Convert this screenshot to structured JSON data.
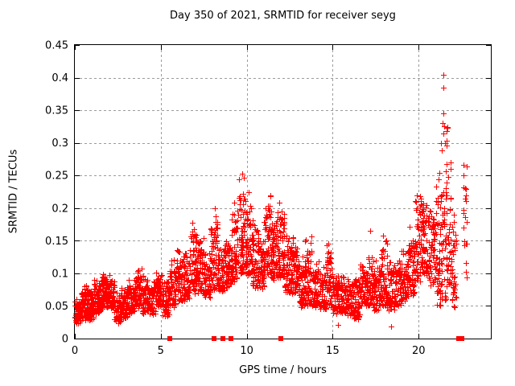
{
  "page": {
    "title": "Day 350 of 2021, SRMTID for receiver seyg"
  },
  "chart_data": {
    "type": "scatter",
    "title": "Day 350 of 2021, SRMTID for receiver seyg",
    "xlabel": "GPS time / hours",
    "ylabel": "SRMTID / TECUs",
    "xlim": [
      0,
      24.2
    ],
    "ylim": [
      0,
      0.45
    ],
    "xticks": [
      0,
      5,
      10,
      15,
      20
    ],
    "xtick_labels": [
      "0",
      "5",
      "10",
      "15",
      "20"
    ],
    "yticks": [
      0,
      0.05,
      0.1,
      0.15,
      0.2,
      0.25,
      0.3,
      0.35,
      0.4,
      0.45
    ],
    "ytick_labels": [
      "0",
      "0.05",
      "0.1",
      "0.15",
      "0.2",
      "0.25",
      "0.3",
      "0.35",
      "0.4",
      "0.45"
    ],
    "grid": true,
    "legend": "none",
    "marker": "plus",
    "marker_color": "#ff0000",
    "grid_color": "#9c9c9c",
    "axis_color": "#000000",
    "series_description": "SRMTID scatter vs GPS time; dense vertical columns of red plus markers. Encoded as density bands [t_start_h, t_end_h, y_min_TECU, y_max_TECU, n_points] estimated from the plot.",
    "bands": [
      [
        0.0,
        0.35,
        0.025,
        0.062,
        70
      ],
      [
        0.35,
        0.7,
        0.03,
        0.085,
        75
      ],
      [
        0.7,
        1.1,
        0.03,
        0.075,
        75
      ],
      [
        1.1,
        1.5,
        0.04,
        0.092,
        70
      ],
      [
        1.5,
        1.9,
        0.048,
        0.105,
        75
      ],
      [
        1.9,
        2.3,
        0.045,
        0.1,
        65
      ],
      [
        2.3,
        2.7,
        0.025,
        0.07,
        60
      ],
      [
        2.7,
        3.1,
        0.032,
        0.078,
        60
      ],
      [
        3.1,
        3.5,
        0.04,
        0.09,
        60
      ],
      [
        3.5,
        3.9,
        0.05,
        0.105,
        65
      ],
      [
        3.9,
        4.3,
        0.04,
        0.096,
        60
      ],
      [
        4.3,
        4.7,
        0.04,
        0.09,
        55
      ],
      [
        4.7,
        5.1,
        0.05,
        0.1,
        60
      ],
      [
        5.1,
        5.5,
        0.035,
        0.09,
        55
      ],
      [
        5.5,
        5.9,
        0.05,
        0.12,
        60
      ],
      [
        5.9,
        6.3,
        0.058,
        0.135,
        60
      ],
      [
        6.3,
        6.7,
        0.06,
        0.13,
        60
      ],
      [
        6.7,
        7.1,
        0.068,
        0.185,
        65
      ],
      [
        7.1,
        7.5,
        0.07,
        0.16,
        60
      ],
      [
        7.5,
        7.9,
        0.065,
        0.135,
        60
      ],
      [
        7.9,
        8.3,
        0.075,
        0.2,
        70
      ],
      [
        8.3,
        8.7,
        0.075,
        0.142,
        70
      ],
      [
        8.7,
        9.1,
        0.08,
        0.16,
        65
      ],
      [
        9.1,
        9.5,
        0.088,
        0.21,
        65
      ],
      [
        9.5,
        9.9,
        0.1,
        0.258,
        70
      ],
      [
        9.9,
        10.3,
        0.1,
        0.232,
        65
      ],
      [
        10.3,
        10.7,
        0.08,
        0.185,
        60
      ],
      [
        10.7,
        11.0,
        0.078,
        0.15,
        50
      ],
      [
        11.0,
        11.4,
        0.095,
        0.235,
        65
      ],
      [
        11.4,
        11.8,
        0.09,
        0.2,
        65
      ],
      [
        11.8,
        12.2,
        0.095,
        0.21,
        70
      ],
      [
        12.2,
        12.6,
        0.07,
        0.16,
        60
      ],
      [
        12.6,
        13.0,
        0.068,
        0.17,
        60
      ],
      [
        13.0,
        13.4,
        0.05,
        0.13,
        60
      ],
      [
        13.4,
        13.8,
        0.05,
        0.155,
        60
      ],
      [
        13.8,
        14.2,
        0.05,
        0.12,
        60
      ],
      [
        14.2,
        14.6,
        0.045,
        0.11,
        58
      ],
      [
        14.6,
        15.0,
        0.05,
        0.152,
        60
      ],
      [
        15.0,
        15.4,
        0.04,
        0.1,
        58
      ],
      [
        15.4,
        15.8,
        0.04,
        0.095,
        58
      ],
      [
        15.8,
        16.2,
        0.035,
        0.1,
        58
      ],
      [
        16.2,
        16.6,
        0.03,
        0.105,
        58
      ],
      [
        16.6,
        17.0,
        0.048,
        0.12,
        58
      ],
      [
        17.0,
        17.4,
        0.05,
        0.13,
        58
      ],
      [
        17.4,
        17.8,
        0.045,
        0.12,
        58
      ],
      [
        17.8,
        18.2,
        0.05,
        0.158,
        58
      ],
      [
        18.2,
        18.6,
        0.045,
        0.12,
        58
      ],
      [
        18.6,
        19.0,
        0.05,
        0.125,
        58
      ],
      [
        19.0,
        19.4,
        0.058,
        0.135,
        58
      ],
      [
        19.4,
        19.8,
        0.068,
        0.175,
        58
      ],
      [
        19.8,
        20.2,
        0.088,
        0.225,
        60
      ],
      [
        20.2,
        20.6,
        0.1,
        0.21,
        60
      ],
      [
        20.6,
        21.0,
        0.08,
        0.22,
        55
      ],
      [
        21.0,
        21.3,
        0.05,
        0.26,
        50
      ],
      [
        21.3,
        21.6,
        0.06,
        0.29,
        45
      ],
      [
        21.6,
        21.9,
        0.08,
        0.33,
        50
      ],
      [
        21.9,
        22.2,
        0.05,
        0.2,
        40
      ],
      [
        22.6,
        22.8,
        0.09,
        0.285,
        22
      ]
    ],
    "outlier_points": [
      [
        21.42,
        0.405
      ],
      [
        21.45,
        0.385
      ],
      [
        21.44,
        0.345
      ],
      [
        21.38,
        0.33
      ],
      [
        21.5,
        0.325
      ],
      [
        21.46,
        0.315
      ],
      [
        21.3,
        0.3
      ],
      [
        21.52,
        0.3
      ],
      [
        17.2,
        0.165
      ],
      [
        15.3,
        0.021
      ],
      [
        18.4,
        0.019
      ]
    ],
    "zero_value_markers_hours": [
      5.5,
      8.1,
      8.6,
      9.1,
      12.0,
      22.35,
      22.5
    ]
  }
}
